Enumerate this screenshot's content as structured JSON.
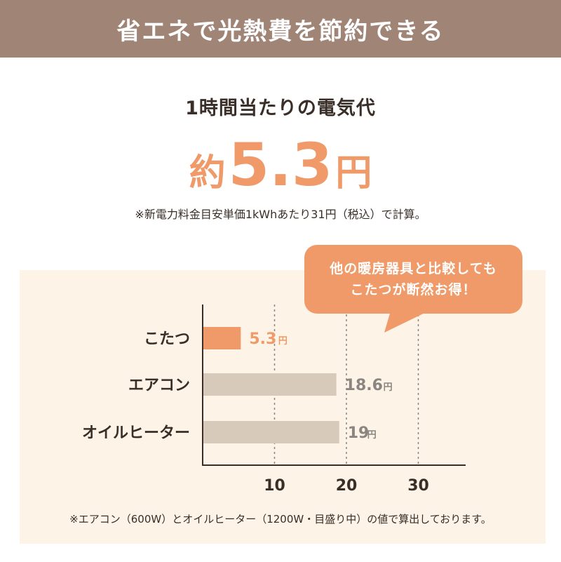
{
  "header": {
    "title": "省エネで光熱費を節約できる"
  },
  "summary": {
    "subtitle": "1時間当たりの電気代",
    "prefix": "約",
    "value": "5.3",
    "unit": "円",
    "note": "※新電力料金目安単価1kWhあたり31円（税込）で計算。"
  },
  "callout": {
    "line1": "他の暖房器具と比較しても",
    "line2": "こたつが断然お得！"
  },
  "footnote": "※エアコン（600W）とオイルヒーター（1200W・目盛り中）の値で算出しております。",
  "colors": {
    "header_bg": "#a08577",
    "accent": "#ef9a68",
    "bar_other": "#d8cabb",
    "panel_bg": "#fdf4e7",
    "text_dark": "#3a2e28",
    "value_gray": "#8a8580"
  },
  "chart_data": {
    "type": "bar",
    "orientation": "horizontal",
    "categories": [
      "こたつ",
      "エアコン",
      "オイルヒーター"
    ],
    "values": [
      5.3,
      18.6,
      19
    ],
    "value_labels": [
      "5.3",
      "18.6",
      "19"
    ],
    "value_unit": "円",
    "x_ticks": [
      "10",
      "20",
      "30"
    ],
    "xlim": [
      0,
      35
    ],
    "grid": "dashed vertical at 10, 20, 30",
    "highlight_category": "こたつ"
  }
}
